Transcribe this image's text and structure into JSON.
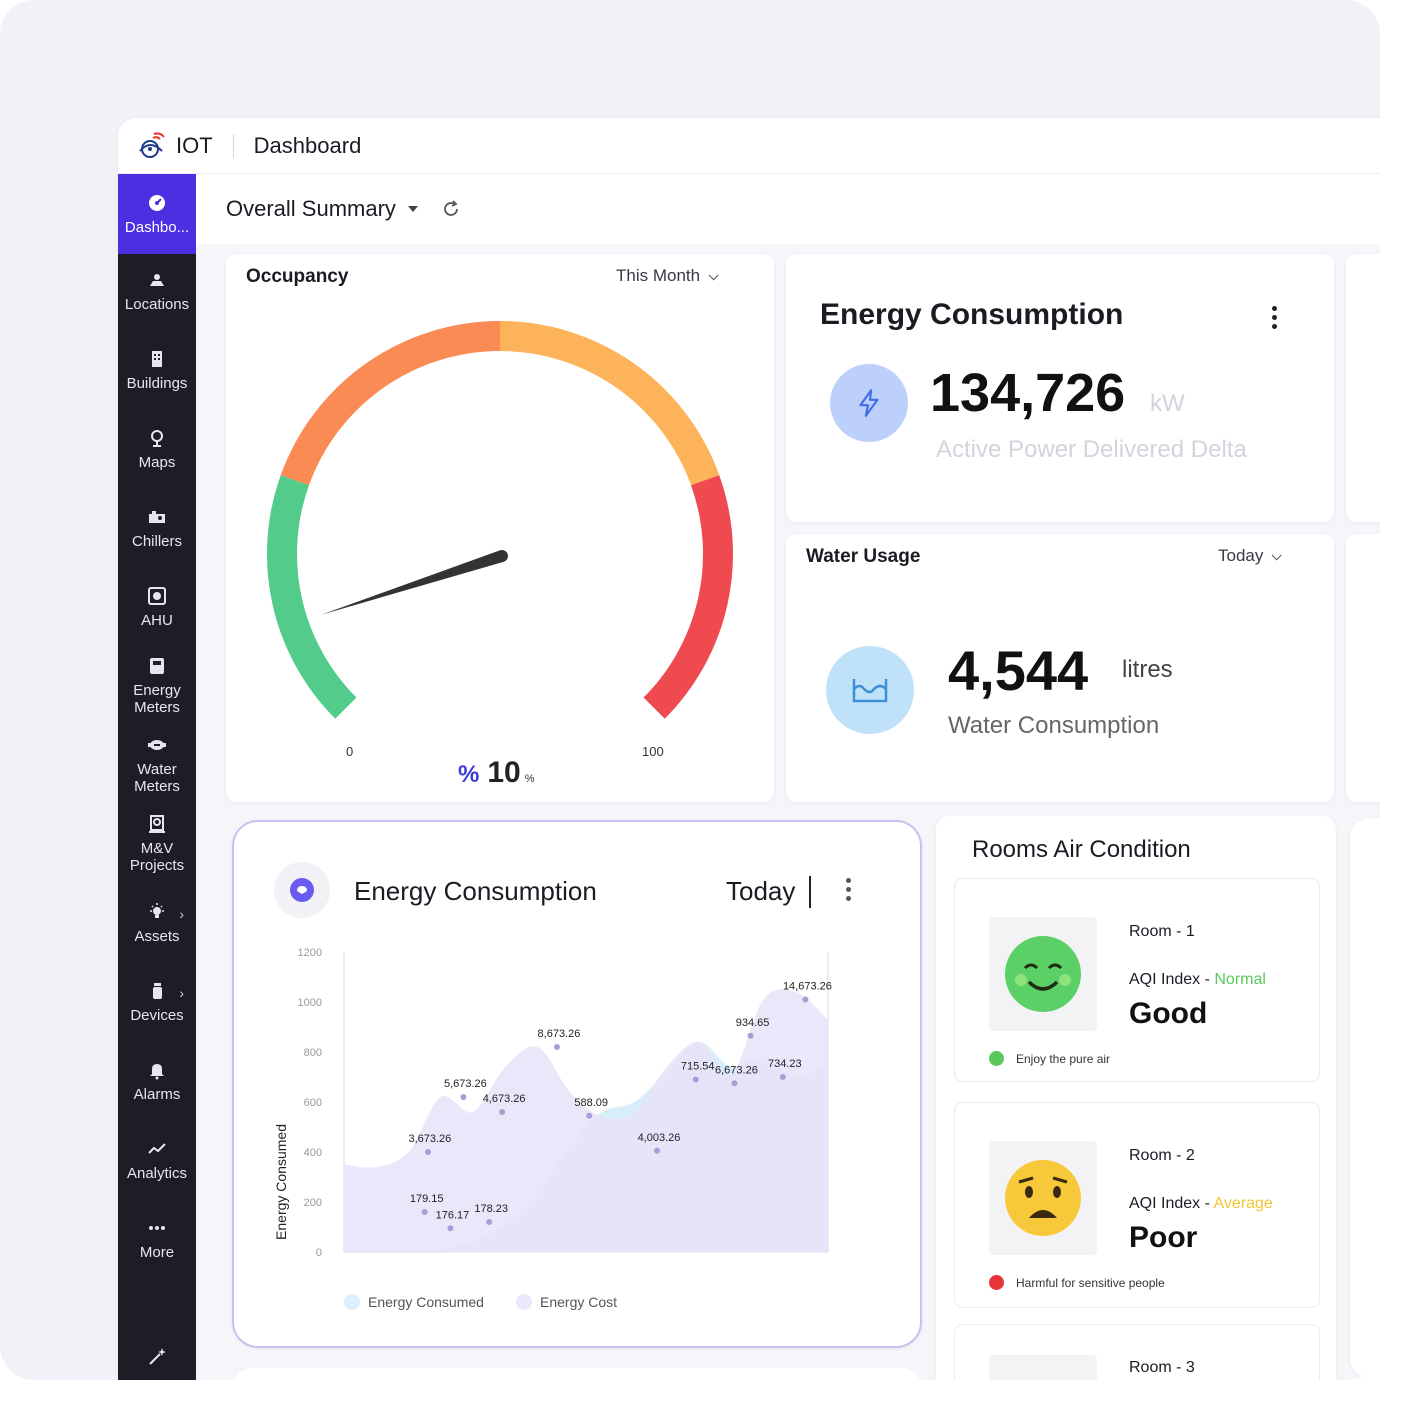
{
  "app": {
    "name": "IOT",
    "page": "Dashboard"
  },
  "header": {
    "summary_label": "Overall Summary"
  },
  "sidebar": {
    "items": [
      {
        "label": "Dashbo...",
        "icon": "dashboard-icon"
      },
      {
        "label": "Locations",
        "icon": "location-icon"
      },
      {
        "label": "Buildings",
        "icon": "building-icon"
      },
      {
        "label": "Maps",
        "icon": "map-pin-icon"
      },
      {
        "label": "Chillers",
        "icon": "chiller-icon"
      },
      {
        "label": "AHU",
        "icon": "fan-icon"
      },
      {
        "label": "Energy\nMeters",
        "icon": "energy-meter-icon"
      },
      {
        "label": "Water\nMeters",
        "icon": "water-meter-icon"
      },
      {
        "label": "M&V\nProjects",
        "icon": "project-icon"
      },
      {
        "label": "Assets",
        "icon": "bulb-icon"
      },
      {
        "label": "Devices",
        "icon": "device-icon"
      },
      {
        "label": "Alarms",
        "icon": "bell-icon"
      },
      {
        "label": "Analytics",
        "icon": "analytics-icon"
      },
      {
        "label": "More",
        "icon": "more-icon"
      }
    ]
  },
  "occupancy": {
    "title": "Occupancy",
    "period": "This Month",
    "min_label": "0",
    "max_label": "100",
    "value": "10",
    "value_fraction": 0.1,
    "unit": "%",
    "prefix_symbol": "%"
  },
  "energy_card": {
    "title": "Energy Consumption",
    "value": "134,726",
    "unit": "kW",
    "caption": "Active Power Delivered Delta"
  },
  "water_card": {
    "title": "Water Usage",
    "period": "Today",
    "value": "4,544",
    "unit": "litres",
    "caption": "Water Consumption"
  },
  "energy_chart_card": {
    "title": "Energy Consumption",
    "period": "Today",
    "ylabel": "Energy Consumed",
    "legend": [
      "Energy Consumed",
      "Energy Cost"
    ]
  },
  "chart_data": {
    "type": "area",
    "ylabel": "Energy Consumed",
    "ylim": [
      0,
      1200
    ],
    "yticks": [
      "0",
      "200",
      "400",
      "600",
      "800",
      "1000",
      "1200"
    ],
    "series": [
      {
        "name": "Energy Consumed",
        "color": "#d6ecfa",
        "x": [
          0,
          1,
          2,
          3,
          4,
          5,
          6,
          7,
          8,
          9,
          10,
          11,
          12,
          13,
          14,
          15
        ],
        "values": [
          0,
          0,
          0,
          10,
          40,
          110,
          230,
          420,
          560,
          600,
          720,
          840,
          740,
          780,
          700,
          760
        ]
      },
      {
        "name": "Energy Cost",
        "color": "#e8e2f8",
        "x": [
          0,
          1,
          2,
          3,
          4,
          5,
          6,
          7,
          8,
          9,
          10,
          11,
          12,
          13,
          14,
          15
        ],
        "values": [
          350,
          340,
          400,
          620,
          560,
          740,
          820,
          640,
          540,
          560,
          740,
          840,
          710,
          1010,
          1040,
          930
        ]
      }
    ],
    "labels": [
      {
        "text": "179.15",
        "x": 2.5,
        "y": 160
      },
      {
        "text": "176.17",
        "x": 3.3,
        "y": 95
      },
      {
        "text": "178.23",
        "x": 4.5,
        "y": 120
      },
      {
        "text": "3,673.26",
        "x": 2.6,
        "y": 400
      },
      {
        "text": "5,673.26",
        "x": 3.7,
        "y": 620
      },
      {
        "text": "4,673.26",
        "x": 4.9,
        "y": 560
      },
      {
        "text": "8,673.26",
        "x": 6.6,
        "y": 820
      },
      {
        "text": "588.09",
        "x": 7.6,
        "y": 545
      },
      {
        "text": "4,003.26",
        "x": 9.7,
        "y": 405
      },
      {
        "text": "715.54",
        "x": 10.9,
        "y": 690
      },
      {
        "text": "6,673.26",
        "x": 12.1,
        "y": 675
      },
      {
        "text": "934.65",
        "x": 12.6,
        "y": 865
      },
      {
        "text": "734.23",
        "x": 13.6,
        "y": 700
      },
      {
        "text": "14,673.26",
        "x": 14.3,
        "y": 1010
      }
    ]
  },
  "rooms": {
    "title": "Rooms Air Condition",
    "items": [
      {
        "name": "Room - 1",
        "aqi_label": "AQI Index - ",
        "aqi_status": "Normal",
        "aqi_color": "#59c95c",
        "quality": "Good",
        "note": "Enjoy the pure air",
        "note_color": "#5ac85e",
        "face": "happy"
      },
      {
        "name": "Room - 2",
        "aqi_label": "AQI Index - ",
        "aqi_status": "Average",
        "aqi_color": "#f4c431",
        "quality": "Poor",
        "note": "Harmful for sensitive people",
        "note_color": "#e5353a",
        "face": "worried"
      },
      {
        "name": "Room - 3",
        "face": "angry"
      }
    ]
  },
  "colors": {
    "accent": "#4b2fe0",
    "gauge_green": "#52cb8b",
    "gauge_orange": "#fb8b55",
    "gauge_yellow": "#fdb35a",
    "gauge_red": "#ef4a4f"
  }
}
